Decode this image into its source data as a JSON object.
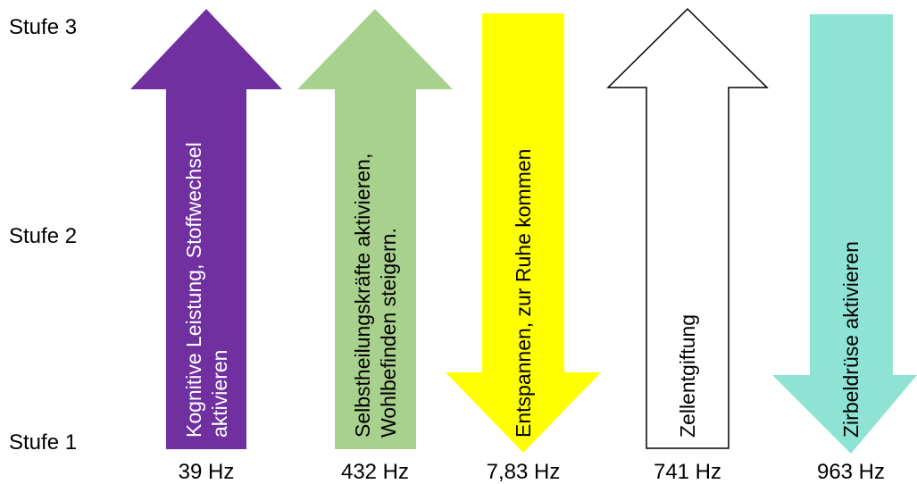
{
  "levels": {
    "top": "Stufe 3",
    "middle": "Stufe 2",
    "bottom": "Stufe 1"
  },
  "arrows": [
    {
      "id": "39hz",
      "direction": "up",
      "color": "#7030a0",
      "text_color": "#ffffff",
      "outline": false,
      "label_lines": [
        "Kognitive Leistung, Stoffwechsel",
        "aktivieren"
      ],
      "frequency": "39 Hz"
    },
    {
      "id": "432hz",
      "direction": "up",
      "color": "#a9d18e",
      "text_color": "#000000",
      "outline": false,
      "label_lines": [
        "Selbstheilungskräfte aktivieren,",
        "Wohlbefinden steigern."
      ],
      "frequency": "432 Hz"
    },
    {
      "id": "783hz",
      "direction": "down",
      "color": "#ffff00",
      "text_color": "#000000",
      "outline": false,
      "label_lines": [
        "Entspannen, zur Ruhe kommen"
      ],
      "frequency": "7,83 Hz"
    },
    {
      "id": "741hz",
      "direction": "up",
      "color": "#ffffff",
      "text_color": "#000000",
      "outline": true,
      "label_lines": [
        "Zellentgiftung"
      ],
      "frequency": "741 Hz"
    },
    {
      "id": "963hz",
      "direction": "down",
      "color": "#8fe3d4",
      "text_color": "#000000",
      "outline": false,
      "label_lines": [
        "Zirbeldrüse aktivieren"
      ],
      "frequency": "963 Hz"
    }
  ]
}
